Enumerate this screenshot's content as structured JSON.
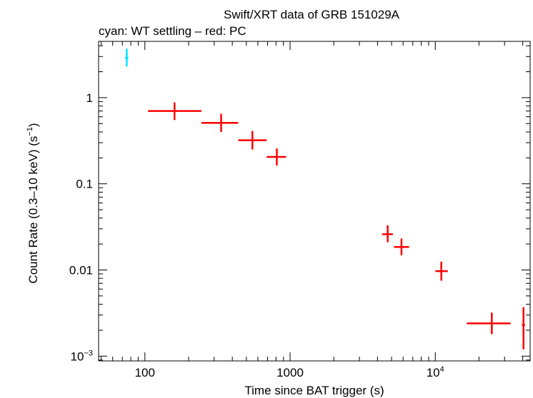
{
  "chart_data": {
    "type": "scatter",
    "title": "Swift/XRT data of GRB 151029A",
    "subtitle": "cyan: WT settling – red: PC",
    "xlabel": "Time since BAT trigger (s)",
    "ylabel": "Count Rate (0.3–10 keV) (s",
    "ylabel_sup": "−1",
    "ylabel_tail": ")",
    "xscale": "log",
    "yscale": "log",
    "xlim": [
      48,
      45000
    ],
    "ylim": [
      0.00088,
      4.5
    ],
    "x_ticks": [
      {
        "value": 100,
        "label": "100",
        "sup": ""
      },
      {
        "value": 1000,
        "label": "1000",
        "sup": ""
      },
      {
        "value": 10000,
        "label": "10",
        "sup": "4"
      }
    ],
    "y_ticks": [
      {
        "value": 1,
        "label": "1",
        "sup": ""
      },
      {
        "value": 0.1,
        "label": "0.1",
        "sup": ""
      },
      {
        "value": 0.01,
        "label": "0.01",
        "sup": ""
      },
      {
        "value": 0.001,
        "label": "10",
        "sup": "−3"
      }
    ],
    "series": [
      {
        "name": "WT settling",
        "color": "#00e5ff",
        "points": [
          {
            "x": 75,
            "xlo": 73,
            "xhi": 77,
            "y": 2.9,
            "ylo": 2.3,
            "yhi": 3.7
          }
        ]
      },
      {
        "name": "PC",
        "color": "#ff0000",
        "points": [
          {
            "x": 160,
            "xlo": 105,
            "xhi": 245,
            "y": 0.7,
            "ylo": 0.55,
            "yhi": 0.88
          },
          {
            "x": 335,
            "xlo": 245,
            "xhi": 440,
            "y": 0.51,
            "ylo": 0.4,
            "yhi": 0.65
          },
          {
            "x": 550,
            "xlo": 440,
            "xhi": 690,
            "y": 0.32,
            "ylo": 0.25,
            "yhi": 0.41
          },
          {
            "x": 810,
            "xlo": 690,
            "xhi": 940,
            "y": 0.205,
            "ylo": 0.163,
            "yhi": 0.257
          },
          {
            "x": 4700,
            "xlo": 4300,
            "xhi": 5100,
            "y": 0.026,
            "ylo": 0.021,
            "yhi": 0.033
          },
          {
            "x": 5850,
            "xlo": 5200,
            "xhi": 6600,
            "y": 0.0185,
            "ylo": 0.0148,
            "yhi": 0.0232
          },
          {
            "x": 11000,
            "xlo": 10000,
            "xhi": 12200,
            "y": 0.0097,
            "ylo": 0.0075,
            "yhi": 0.0125
          },
          {
            "x": 24500,
            "xlo": 16500,
            "xhi": 33000,
            "y": 0.0024,
            "ylo": 0.0018,
            "yhi": 0.0032
          },
          {
            "x": 40500,
            "xlo": 39500,
            "xhi": 41500,
            "y": 0.0023,
            "ylo": 0.0012,
            "yhi": 0.0037
          }
        ]
      }
    ]
  }
}
